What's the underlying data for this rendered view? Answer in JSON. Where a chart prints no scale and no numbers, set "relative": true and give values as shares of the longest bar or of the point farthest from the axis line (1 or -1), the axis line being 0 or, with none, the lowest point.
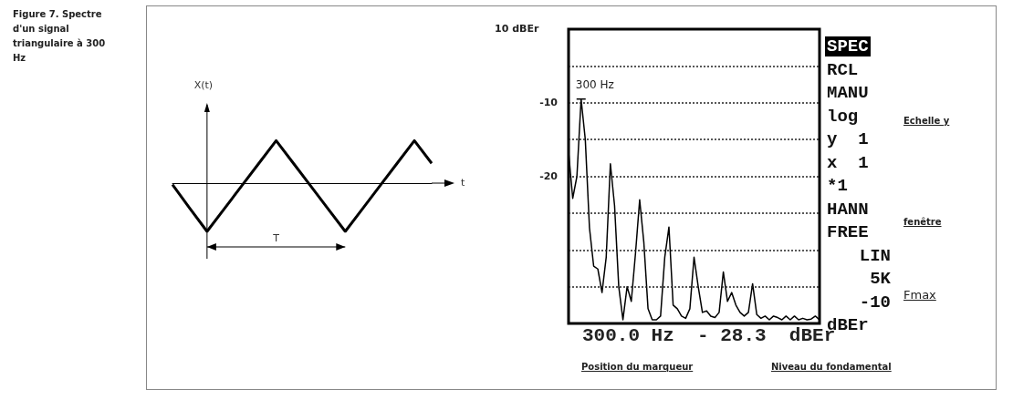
{
  "chart_data": [
    {
      "type": "line",
      "relative": true,
      "tick_labels": false,
      "categories": [
        null,
        null,
        null,
        null,
        null,
        null,
        null,
        null,
        null,
        null,
        null,
        null,
        null,
        null,
        null,
        null
      ],
      "series": [
        {
          "color": "#000000",
          "values": [
            -0.03,
            -0.52,
            -1,
            -0.53,
            -0.06,
            0.41,
            0.88,
            0.41,
            -0.06,
            -0.53,
            -1,
            -0.53,
            -0.06,
            0.41,
            0.88,
            0.41
          ]
        }
      ],
      "annotations": [
        "X(t)",
        "t",
        "T",
        "Figure 7. Spectre d'un signal triangulaire à 300 Hz"
      ]
    },
    {
      "type": "line",
      "tick_labels": "y",
      "grid": "y",
      "ylim": [
        -40,
        0
      ],
      "yticks": [
        {
          "value": -5,
          "label": null
        },
        -10,
        {
          "value": -15,
          "label": null
        },
        -20,
        {
          "value": -25,
          "label": null
        },
        {
          "value": -30,
          "label": null
        },
        {
          "value": -35,
          "label": null
        }
      ],
      "categories": [
        null,
        null,
        null,
        null,
        null,
        null,
        null,
        null,
        null,
        null,
        null,
        null,
        null,
        null,
        null,
        null,
        null,
        null,
        null,
        null,
        null,
        null,
        null,
        null,
        null,
        null,
        null,
        null,
        null,
        null,
        null,
        null,
        null,
        null,
        null,
        null,
        null,
        null,
        null,
        null,
        null,
        null,
        null,
        null,
        null,
        null,
        null,
        null,
        null,
        null,
        null,
        null,
        null,
        null,
        null,
        null,
        null,
        null,
        null,
        null,
        null
      ],
      "series": [
        {
          "color": "#000000",
          "values": [
            -16.7,
            -23,
            -20,
            -9.5,
            -15,
            -27,
            -32.2,
            -32.6,
            -35.8,
            -31,
            -18.3,
            -24,
            -35,
            -39.5,
            -35,
            -37,
            -30.5,
            -23.2,
            -29,
            -38,
            -39.5,
            -39.5,
            -39,
            -31,
            -26.9,
            -37.5,
            -38,
            -39,
            -39.3,
            -38,
            -31,
            -35,
            -38.5,
            -38.3,
            -39,
            -39.2,
            -38.5,
            -33,
            -37,
            -35.8,
            -37.5,
            -38.5,
            -39,
            -38.5,
            -34.6,
            -38.8,
            -39.3,
            -39,
            -39.5,
            -39,
            -39.2,
            -39.5,
            -39,
            -39.5,
            -39,
            -39.5,
            -39.3,
            -39.5,
            -39.4,
            -39,
            -39.5
          ]
        }
      ],
      "annotations": [
        "10 dBEr",
        "300 Hz",
        "SPEC",
        "RCL",
        "MANU",
        "log",
        "y  1",
        "x  1",
        "*1",
        "HANN",
        "FREE",
        "LIN",
        "5K",
        "-10",
        "dBEr",
        "Echelle y",
        "fenêtre",
        "Fmax",
        "300.0 Hz  - 28.3  dBEr",
        "Position du marqueur",
        "Niveau du fondamental"
      ]
    }
  ]
}
